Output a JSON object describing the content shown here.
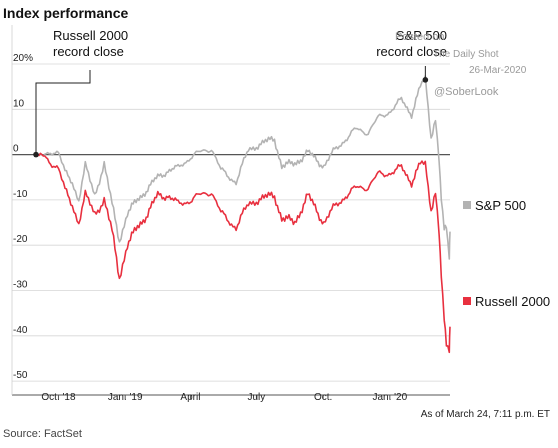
{
  "chart_data": {
    "type": "line",
    "title": "Index performance",
    "xlabel": "",
    "ylabel": "",
    "y_unit_label": "20%",
    "ylim": [
      -50,
      22
    ],
    "yticks": [
      20,
      10,
      0,
      -10,
      -20,
      -30,
      -40,
      -50
    ],
    "ytick_labels": [
      "20%",
      "10",
      "0",
      "-10",
      "-20",
      "-30",
      "-40",
      "-50"
    ],
    "xlim": [
      "2018-08-31",
      "2020-03-24"
    ],
    "xticks": [
      {
        "date": "2018-10-01",
        "label": "Oct. '18"
      },
      {
        "date": "2019-01-01",
        "label": "Jan. '19"
      },
      {
        "date": "2019-04-01",
        "label": "April"
      },
      {
        "date": "2019-07-01",
        "label": "July"
      },
      {
        "date": "2019-10-01",
        "label": "Oct."
      },
      {
        "date": "2020-01-01",
        "label": "Jan. '20"
      }
    ],
    "grid": "horizontal",
    "legend": "right",
    "series": [
      {
        "name": "S&P 500",
        "color": "#b3b3b3",
        "points": [
          [
            "2018-08-31",
            0
          ],
          [
            "2018-09-10",
            -0.5
          ],
          [
            "2018-09-20",
            0.8
          ],
          [
            "2018-10-01",
            0.5
          ],
          [
            "2018-10-10",
            -4
          ],
          [
            "2018-10-20",
            -6
          ],
          [
            "2018-10-29",
            -10
          ],
          [
            "2018-11-07",
            -2.5
          ],
          [
            "2018-11-20",
            -9
          ],
          [
            "2018-12-03",
            -2
          ],
          [
            "2018-12-14",
            -11
          ],
          [
            "2018-12-24",
            -19
          ],
          [
            "2019-01-04",
            -13
          ],
          [
            "2019-01-18",
            -10
          ],
          [
            "2019-02-01",
            -7.5
          ],
          [
            "2019-02-15",
            -5
          ],
          [
            "2019-03-01",
            -3.5
          ],
          [
            "2019-03-15",
            -3
          ],
          [
            "2019-04-01",
            -0.5
          ],
          [
            "2019-04-15",
            0.5
          ],
          [
            "2019-04-30",
            1.5
          ],
          [
            "2019-05-13",
            -3.5
          ],
          [
            "2019-06-03",
            -6
          ],
          [
            "2019-06-20",
            1
          ],
          [
            "2019-07-01",
            2
          ],
          [
            "2019-07-26",
            3.5
          ],
          [
            "2019-08-05",
            -2.5
          ],
          [
            "2019-08-23",
            -2
          ],
          [
            "2019-09-10",
            0.5
          ],
          [
            "2019-10-02",
            -2.5
          ],
          [
            "2019-10-15",
            0.5
          ],
          [
            "2019-11-01",
            3.5
          ],
          [
            "2019-11-15",
            5.5
          ],
          [
            "2019-12-02",
            5
          ],
          [
            "2019-12-16",
            8
          ],
          [
            "2019-12-31",
            9.5
          ],
          [
            "2020-01-17",
            12
          ],
          [
            "2020-01-31",
            9
          ],
          [
            "2020-02-12",
            15
          ],
          [
            "2020-02-19",
            16.5
          ],
          [
            "2020-02-27",
            4
          ],
          [
            "2020-03-04",
            8
          ],
          [
            "2020-03-09",
            -1
          ],
          [
            "2020-03-12",
            -10
          ],
          [
            "2020-03-16",
            -17
          ],
          [
            "2020-03-19",
            -16
          ],
          [
            "2020-03-23",
            -22.5
          ],
          [
            "2020-03-24",
            -17
          ]
        ]
      },
      {
        "name": "Russell 2000",
        "color": "#e8303f",
        "points": [
          [
            "2018-08-31",
            0
          ],
          [
            "2018-09-10",
            -0.5
          ],
          [
            "2018-09-20",
            -1.5
          ],
          [
            "2018-10-01",
            -3
          ],
          [
            "2018-10-10",
            -8
          ],
          [
            "2018-10-20",
            -11
          ],
          [
            "2018-10-29",
            -15
          ],
          [
            "2018-11-07",
            -9
          ],
          [
            "2018-11-20",
            -13
          ],
          [
            "2018-12-03",
            -10
          ],
          [
            "2018-12-14",
            -17
          ],
          [
            "2018-12-24",
            -27
          ],
          [
            "2019-01-04",
            -20
          ],
          [
            "2019-01-18",
            -16
          ],
          [
            "2019-02-01",
            -13
          ],
          [
            "2019-02-15",
            -9
          ],
          [
            "2019-03-01",
            -9
          ],
          [
            "2019-03-15",
            -11
          ],
          [
            "2019-04-01",
            -10
          ],
          [
            "2019-04-15",
            -9
          ],
          [
            "2019-04-30",
            -8
          ],
          [
            "2019-05-13",
            -13
          ],
          [
            "2019-06-03",
            -16
          ],
          [
            "2019-06-20",
            -11
          ],
          [
            "2019-07-01",
            -10
          ],
          [
            "2019-07-26",
            -9
          ],
          [
            "2019-08-05",
            -14
          ],
          [
            "2019-08-23",
            -15
          ],
          [
            "2019-09-10",
            -9
          ],
          [
            "2019-10-02",
            -15
          ],
          [
            "2019-10-15",
            -12
          ],
          [
            "2019-11-01",
            -9
          ],
          [
            "2019-11-15",
            -7.5
          ],
          [
            "2019-12-02",
            -7
          ],
          [
            "2019-12-16",
            -4.5
          ],
          [
            "2019-12-31",
            -4
          ],
          [
            "2020-01-17",
            -3
          ],
          [
            "2020-01-31",
            -6
          ],
          [
            "2020-02-12",
            -2
          ],
          [
            "2020-02-19",
            -2.5
          ],
          [
            "2020-02-27",
            -12
          ],
          [
            "2020-03-04",
            -8
          ],
          [
            "2020-03-09",
            -17
          ],
          [
            "2020-03-12",
            -27
          ],
          [
            "2020-03-16",
            -37
          ],
          [
            "2020-03-19",
            -42
          ],
          [
            "2020-03-23",
            -43
          ],
          [
            "2020-03-24",
            -38
          ]
        ]
      }
    ],
    "annotations": [
      {
        "lines": [
          "Russell 2000",
          "record close"
        ],
        "date": "2018-08-31",
        "value": 0
      },
      {
        "lines": [
          "S&P 500",
          "record close"
        ],
        "date": "2020-02-19",
        "value": 16.5
      }
    ]
  },
  "footnote": "As of March 24, 7:11 p.m. ET",
  "source": "Source: FactSet",
  "watermark": {
    "posted_lines": [
      "Posted on",
      "The Daily Shot",
      "26-Mar-2020"
    ],
    "handle": "@SoberLook"
  }
}
